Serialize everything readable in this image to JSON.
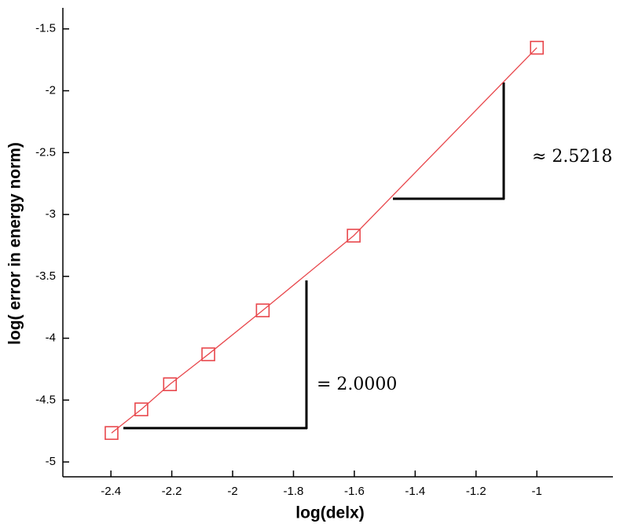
{
  "chart_data": {
    "type": "line",
    "x_label": "log(delx)",
    "y_label": "log( error in energy norm)",
    "x": [
      -2.398,
      -2.3,
      -2.206,
      -2.08,
      -1.901,
      -1.602,
      -1.0
    ],
    "series": [
      {
        "color": "#e8474c",
        "values": [
          -4.766,
          -4.575,
          -4.372,
          -4.13,
          -3.775,
          -3.171,
          -1.652
        ]
      }
    ],
    "xlim": [
      -2.558,
      -0.75
    ],
    "ylim": [
      -5.12,
      -1.33
    ],
    "xticks": [
      -2.4,
      -2.2,
      -2,
      -1.8,
      -1.6,
      -1.4,
      -1.2,
      -1
    ],
    "yticks": [
      -5,
      -4.5,
      -4,
      -3.5,
      -3,
      -2.5,
      -2,
      -1.5
    ],
    "marker": "square",
    "annotations": [
      "= 2.0000",
      "≈ 2.5218"
    ]
  }
}
